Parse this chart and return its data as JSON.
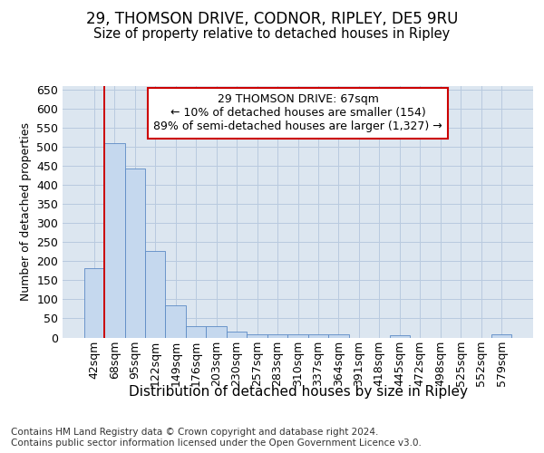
{
  "title": "29, THOMSON DRIVE, CODNOR, RIPLEY, DE5 9RU",
  "subtitle": "Size of property relative to detached houses in Ripley",
  "xlabel": "Distribution of detached houses by size in Ripley",
  "ylabel": "Number of detached properties",
  "categories": [
    "42sqm",
    "68sqm",
    "95sqm",
    "122sqm",
    "149sqm",
    "176sqm",
    "203sqm",
    "230sqm",
    "257sqm",
    "283sqm",
    "310sqm",
    "337sqm",
    "364sqm",
    "391sqm",
    "418sqm",
    "445sqm",
    "472sqm",
    "498sqm",
    "525sqm",
    "552sqm",
    "579sqm"
  ],
  "values": [
    183,
    510,
    443,
    228,
    85,
    29,
    29,
    15,
    8,
    8,
    8,
    8,
    8,
    0,
    0,
    5,
    0,
    0,
    0,
    0,
    8
  ],
  "bar_color": "#c5d8ee",
  "bar_edgecolor": "#5b8ac5",
  "grid_color": "#b8cadf",
  "bg_color": "#dce6f0",
  "vline_color": "#cc0000",
  "annotation_text": "29 THOMSON DRIVE: 67sqm\n← 10% of detached houses are smaller (154)\n89% of semi-detached houses are larger (1,327) →",
  "annotation_box_color": "#cc0000",
  "footer_text": "Contains HM Land Registry data © Crown copyright and database right 2024.\nContains public sector information licensed under the Open Government Licence v3.0.",
  "ylim": [
    0,
    660
  ],
  "yticks": [
    0,
    50,
    100,
    150,
    200,
    250,
    300,
    350,
    400,
    450,
    500,
    550,
    600,
    650
  ],
  "title_fontsize": 12,
  "subtitle_fontsize": 10.5,
  "xlabel_fontsize": 11,
  "ylabel_fontsize": 9,
  "tick_fontsize": 9,
  "ann_fontsize": 9,
  "footer_fontsize": 7.5
}
